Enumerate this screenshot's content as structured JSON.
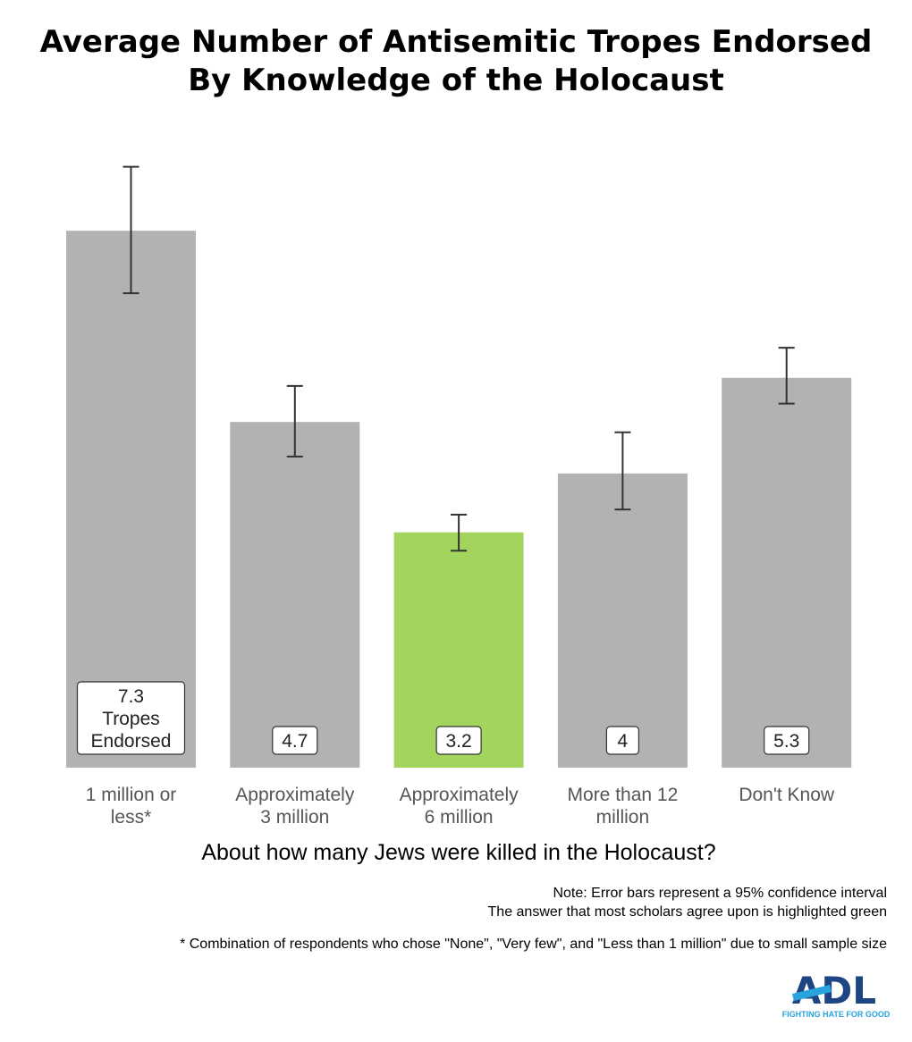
{
  "chart_data": {
    "type": "bar",
    "title": [
      "Average Number of Antisemitic Tropes Endorsed",
      "By Knowledge of the Holocaust"
    ],
    "xlabel": "About how many Jews were killed in the Holocaust?",
    "ylabel": "",
    "ylim": [
      0,
      8.5
    ],
    "grid": false,
    "categories": [
      [
        "1 million or",
        "less*"
      ],
      [
        "Approximately",
        "3 million"
      ],
      [
        "Approximately",
        "6 million"
      ],
      [
        "More than 12",
        "million"
      ],
      [
        "Don't Know"
      ]
    ],
    "values": [
      7.3,
      4.7,
      3.2,
      4,
      5.3
    ],
    "data_labels": [
      [
        "7.3",
        "Tropes",
        "Endorsed"
      ],
      [
        "4.7"
      ],
      [
        "3.2"
      ],
      [
        "4"
      ],
      [
        "5.3"
      ]
    ],
    "error_bars": [
      [
        6.45,
        8.17
      ],
      [
        4.23,
        5.19
      ],
      [
        2.95,
        3.44
      ],
      [
        3.51,
        4.56
      ],
      [
        4.95,
        5.71
      ]
    ],
    "highlighted_index": 2,
    "colors": {
      "bar": "#b1b2b4",
      "highlight": "#a3d45e",
      "error_bar": "#333333"
    }
  },
  "notes": [
    "Note: Error bars represent a 95% confidence interval",
    "The answer that most scholars agree upon is highlighted green"
  ],
  "footnote": "* Combination of respondents who chose \"None\", \"Very few\", and \"Less than 1 million\" due to small sample size",
  "logo": {
    "text": "ADL",
    "tagline": "FIGHTING HATE FOR GOOD",
    "colors": {
      "dark": "#1d4582",
      "light": "#29a3dd"
    }
  }
}
